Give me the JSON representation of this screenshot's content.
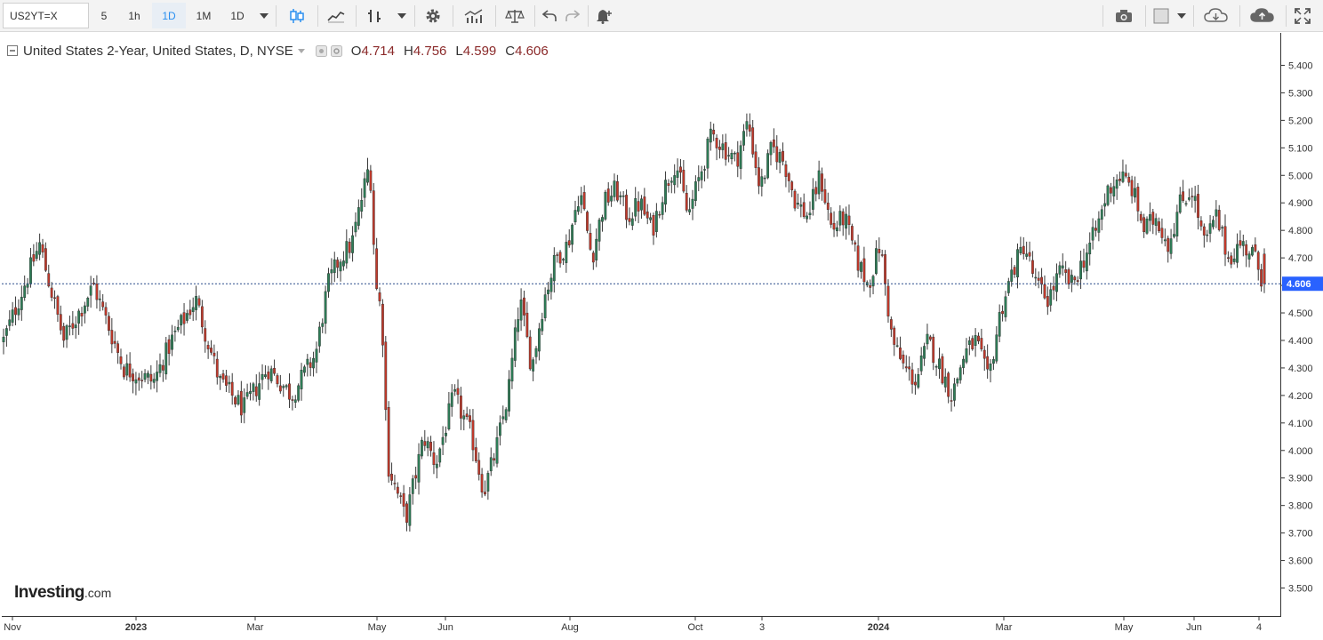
{
  "toolbar": {
    "symbol": "US2YT=X",
    "intervals": [
      "5",
      "1h",
      "1D",
      "1M",
      "1D"
    ],
    "active_interval_index": 2,
    "icons": [
      "candles-icon",
      "line-chart-icon",
      "indicators-icon",
      "settings-icon",
      "compare-icon",
      "balance-icon",
      "undo-icon",
      "redo-icon",
      "alert-icon",
      "camera-icon",
      "theme-icon",
      "cloud-load-icon",
      "cloud-save-icon",
      "fullscreen-icon"
    ]
  },
  "legend": {
    "title": "United States 2-Year, United States, D, NYSE",
    "open_label": "O",
    "open": "4.714",
    "high_label": "H",
    "high": "4.756",
    "low_label": "L",
    "low": "4.599",
    "close_label": "C",
    "close": "4.606"
  },
  "logo": {
    "brand": "Investing",
    "suffix": ".com"
  },
  "price_axis": {
    "current_price": "4.606",
    "current_price_color": "#2962ff"
  },
  "colors": {
    "up": "#2e7d57",
    "down": "#c0392b",
    "wick": "#444444"
  },
  "chart_data": {
    "type": "candlestick",
    "title": "United States 2-Year, United States, D, NYSE",
    "ylim": [
      3.45,
      5.45
    ],
    "y_ticks": [
      "5.400",
      "5.300",
      "5.200",
      "5.100",
      "5.000",
      "4.900",
      "4.800",
      "4.700",
      "4.600",
      "4.500",
      "4.400",
      "4.300",
      "4.200",
      "4.100",
      "4.000",
      "3.900",
      "3.800",
      "3.700",
      "3.600",
      "3.500"
    ],
    "x_ticks": [
      "Nov",
      "2023",
      "Mar",
      "May",
      "Jun",
      "Aug",
      "Oct",
      "3",
      "2024",
      "Mar",
      "May",
      "Jun",
      "4"
    ],
    "x_ticks_bold": [
      false,
      true,
      false,
      false,
      false,
      false,
      false,
      false,
      true,
      false,
      false,
      false,
      false
    ],
    "last_price": 4.606,
    "approx_path": [
      [
        0,
        4.4
      ],
      [
        6,
        4.75
      ],
      [
        10,
        4.4
      ],
      [
        15,
        4.6
      ],
      [
        20,
        4.3
      ],
      [
        25,
        4.25
      ],
      [
        28,
        4.4
      ],
      [
        32,
        4.55
      ],
      [
        36,
        4.25
      ],
      [
        40,
        4.15
      ],
      [
        44,
        4.3
      ],
      [
        48,
        4.2
      ],
      [
        52,
        4.35
      ],
      [
        54,
        4.6
      ],
      [
        56,
        4.7
      ],
      [
        58,
        4.75
      ],
      [
        61,
        5.05
      ],
      [
        62,
        4.6
      ],
      [
        63,
        4.5
      ],
      [
        64,
        3.95
      ],
      [
        67,
        3.75
      ],
      [
        70,
        4.05
      ],
      [
        72,
        3.95
      ],
      [
        75,
        4.2
      ],
      [
        78,
        4.05
      ],
      [
        80,
        3.85
      ],
      [
        82,
        4.0
      ],
      [
        84,
        4.2
      ],
      [
        86,
        4.55
      ],
      [
        88,
        4.3
      ],
      [
        90,
        4.55
      ],
      [
        92,
        4.7
      ],
      [
        94,
        4.75
      ],
      [
        96,
        4.95
      ],
      [
        98,
        4.7
      ],
      [
        100,
        4.9
      ],
      [
        102,
        4.95
      ],
      [
        104,
        4.85
      ],
      [
        106,
        4.9
      ],
      [
        108,
        4.8
      ],
      [
        110,
        4.95
      ],
      [
        112,
        5.05
      ],
      [
        114,
        4.85
      ],
      [
        116,
        5.0
      ],
      [
        118,
        5.15
      ],
      [
        120,
        5.1
      ],
      [
        122,
        5.05
      ],
      [
        124,
        5.2
      ],
      [
        126,
        4.95
      ],
      [
        128,
        5.1
      ],
      [
        130,
        5.05
      ],
      [
        132,
        4.9
      ],
      [
        134,
        4.85
      ],
      [
        136,
        5.0
      ],
      [
        138,
        4.8
      ],
      [
        140,
        4.85
      ],
      [
        142,
        4.7
      ],
      [
        144,
        4.6
      ],
      [
        146,
        4.75
      ],
      [
        148,
        4.4
      ],
      [
        150,
        4.3
      ],
      [
        152,
        4.25
      ],
      [
        154,
        4.4
      ],
      [
        156,
        4.3
      ],
      [
        158,
        4.2
      ],
      [
        160,
        4.35
      ],
      [
        162,
        4.4
      ],
      [
        164,
        4.25
      ],
      [
        166,
        4.5
      ],
      [
        168,
        4.65
      ],
      [
        170,
        4.75
      ],
      [
        172,
        4.6
      ],
      [
        174,
        4.55
      ],
      [
        176,
        4.65
      ],
      [
        178,
        4.6
      ],
      [
        180,
        4.7
      ],
      [
        182,
        4.8
      ],
      [
        184,
        4.95
      ],
      [
        186,
        5.0
      ],
      [
        188,
        4.95
      ],
      [
        190,
        4.8
      ],
      [
        192,
        4.85
      ],
      [
        194,
        4.75
      ],
      [
        196,
        4.9
      ],
      [
        198,
        4.95
      ],
      [
        200,
        4.75
      ],
      [
        202,
        4.85
      ],
      [
        204,
        4.7
      ],
      [
        206,
        4.75
      ],
      [
        208,
        4.72
      ],
      [
        210,
        4.606
      ]
    ]
  }
}
